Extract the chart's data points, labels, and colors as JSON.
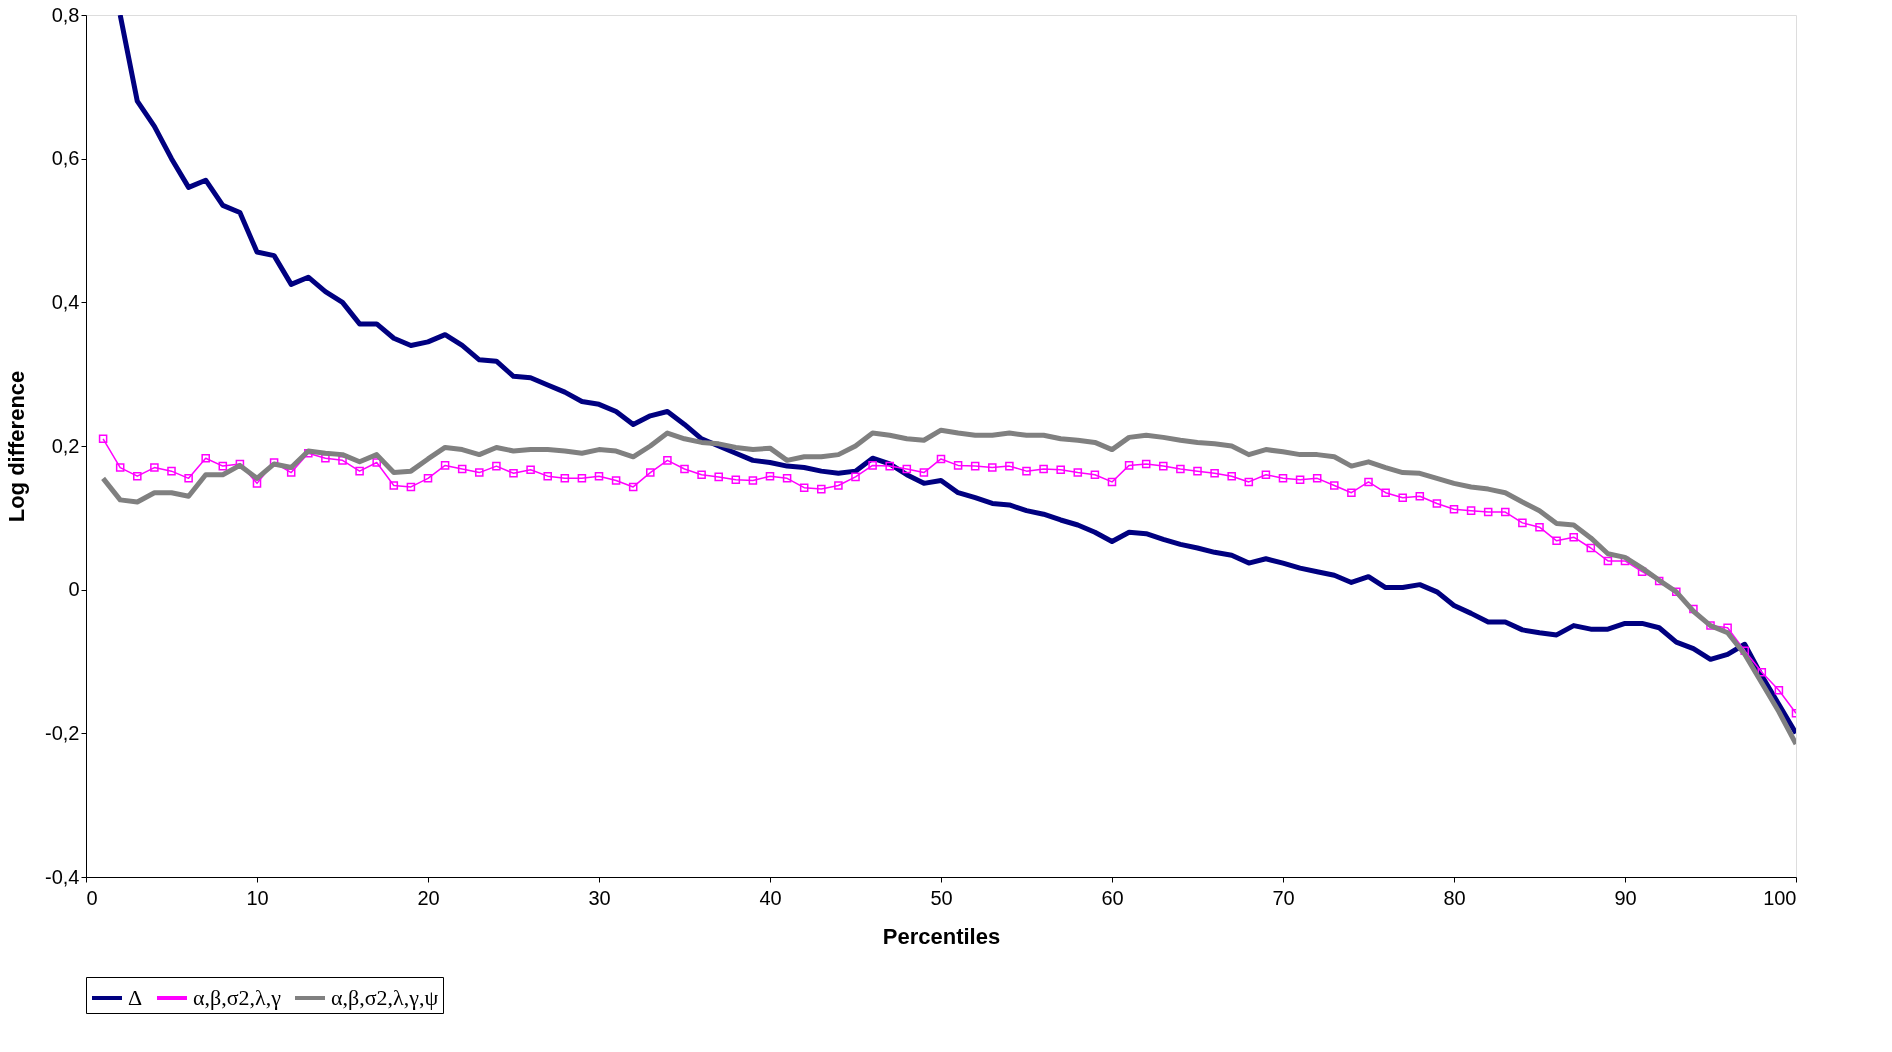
{
  "chart_data": {
    "type": "line",
    "xlabel": "Percentiles",
    "ylabel": "Log difference",
    "xlim": [
      0,
      100
    ],
    "xticks": [
      0,
      10,
      20,
      30,
      40,
      50,
      60,
      70,
      80,
      90,
      100
    ],
    "ylim": [
      -0.4,
      0.8
    ],
    "yticks": [
      {
        "value": -0.4,
        "label": "-0,4"
      },
      {
        "value": -0.2,
        "label": "-0,2"
      },
      {
        "value": 0,
        "label": "0"
      },
      {
        "value": 0.2,
        "label": "0,2"
      },
      {
        "value": 0.4,
        "label": "0,4"
      },
      {
        "value": 0.6,
        "label": "0,6"
      },
      {
        "value": 0.8,
        "label": "0,8"
      }
    ],
    "grid": false,
    "legend": "bottom",
    "series": [
      {
        "name": "Δ",
        "color": "#000080",
        "marker": "none",
        "x": [
          2,
          3,
          4,
          5,
          6,
          7,
          8,
          9,
          10,
          11,
          12,
          13,
          14,
          15,
          16,
          17,
          18,
          19,
          20,
          21,
          22,
          23,
          24,
          25,
          26,
          27,
          28,
          29,
          30,
          31,
          32,
          33,
          34,
          35,
          36,
          37,
          38,
          39,
          40,
          41,
          42,
          43,
          44,
          45,
          46,
          47,
          48,
          49,
          50,
          51,
          52,
          53,
          54,
          55,
          56,
          57,
          58,
          59,
          60,
          61,
          62,
          63,
          64,
          65,
          66,
          67,
          68,
          69,
          70,
          71,
          72,
          73,
          74,
          75,
          76,
          77,
          78,
          79,
          80,
          81,
          82,
          83,
          84,
          85,
          86,
          87,
          88,
          89,
          90,
          91,
          92,
          93,
          94,
          95,
          96,
          97,
          98,
          99,
          100
        ],
        "values": [
          0.8,
          0.68,
          0.645,
          0.6,
          0.56,
          0.57,
          0.535,
          0.525,
          0.47,
          0.465,
          0.425,
          0.435,
          0.415,
          0.4,
          0.37,
          0.37,
          0.35,
          0.34,
          0.345,
          0.355,
          0.34,
          0.32,
          0.318,
          0.297,
          0.295,
          0.285,
          0.275,
          0.262,
          0.258,
          0.248,
          0.23,
          0.242,
          0.248,
          0.23,
          0.21,
          0.2,
          0.19,
          0.18,
          0.177,
          0.172,
          0.17,
          0.165,
          0.162,
          0.165,
          0.183,
          0.175,
          0.16,
          0.148,
          0.152,
          0.135,
          0.128,
          0.12,
          0.118,
          0.11,
          0.105,
          0.097,
          0.09,
          0.08,
          0.067,
          0.08,
          0.078,
          0.07,
          0.063,
          0.058,
          0.052,
          0.048,
          0.037,
          0.043,
          0.037,
          0.03,
          0.025,
          0.02,
          0.01,
          0.018,
          0.003,
          0.003,
          0.007,
          -0.003,
          -0.022,
          -0.033,
          -0.045,
          -0.045,
          -0.056,
          -0.06,
          -0.063,
          -0.05,
          -0.055,
          -0.055,
          -0.047,
          -0.047,
          -0.053,
          -0.073,
          -0.082,
          -0.097,
          -0.09,
          -0.076,
          -0.12,
          -0.16,
          -0.2
        ]
      },
      {
        "name": "α,β,σ2,λ,γ",
        "color": "#ff00ff",
        "marker": "square",
        "x": [
          1,
          2,
          3,
          4,
          5,
          6,
          7,
          8,
          9,
          10,
          11,
          12,
          13,
          14,
          15,
          16,
          17,
          18,
          19,
          20,
          21,
          22,
          23,
          24,
          25,
          26,
          27,
          28,
          29,
          30,
          31,
          32,
          33,
          34,
          35,
          36,
          37,
          38,
          39,
          40,
          41,
          42,
          43,
          44,
          45,
          46,
          47,
          48,
          49,
          50,
          51,
          52,
          53,
          54,
          55,
          56,
          57,
          58,
          59,
          60,
          61,
          62,
          63,
          64,
          65,
          66,
          67,
          68,
          69,
          70,
          71,
          72,
          73,
          74,
          75,
          76,
          77,
          78,
          79,
          80,
          81,
          82,
          83,
          84,
          85,
          86,
          87,
          88,
          89,
          90,
          91,
          92,
          93,
          94,
          95,
          96,
          97,
          98,
          99,
          100
        ],
        "values": [
          0.21,
          0.17,
          0.158,
          0.17,
          0.165,
          0.155,
          0.183,
          0.172,
          0.175,
          0.148,
          0.177,
          0.163,
          0.19,
          0.183,
          0.18,
          0.165,
          0.177,
          0.145,
          0.143,
          0.155,
          0.173,
          0.168,
          0.163,
          0.172,
          0.162,
          0.167,
          0.158,
          0.155,
          0.155,
          0.158,
          0.152,
          0.143,
          0.163,
          0.18,
          0.168,
          0.16,
          0.157,
          0.153,
          0.152,
          0.158,
          0.155,
          0.142,
          0.14,
          0.145,
          0.157,
          0.173,
          0.172,
          0.168,
          0.163,
          0.182,
          0.173,
          0.172,
          0.17,
          0.172,
          0.165,
          0.168,
          0.167,
          0.163,
          0.16,
          0.15,
          0.173,
          0.175,
          0.172,
          0.168,
          0.165,
          0.162,
          0.158,
          0.15,
          0.16,
          0.155,
          0.153,
          0.155,
          0.145,
          0.135,
          0.15,
          0.135,
          0.128,
          0.13,
          0.12,
          0.112,
          0.11,
          0.108,
          0.108,
          0.093,
          0.087,
          0.068,
          0.073,
          0.058,
          0.04,
          0.04,
          0.025,
          0.012,
          -0.003,
          -0.027,
          -0.05,
          -0.053,
          -0.085,
          -0.115,
          -0.14,
          -0.172
        ]
      },
      {
        "name": "α,β,σ2,λ,γ,ψ",
        "color": "#808080",
        "marker": "none",
        "x": [
          1,
          2,
          3,
          4,
          5,
          6,
          7,
          8,
          9,
          10,
          11,
          12,
          13,
          14,
          15,
          16,
          17,
          18,
          19,
          20,
          21,
          22,
          23,
          24,
          25,
          26,
          27,
          28,
          29,
          30,
          31,
          32,
          33,
          34,
          35,
          36,
          37,
          38,
          39,
          40,
          41,
          42,
          43,
          44,
          45,
          46,
          47,
          48,
          49,
          50,
          51,
          52,
          53,
          54,
          55,
          56,
          57,
          58,
          59,
          60,
          61,
          62,
          63,
          64,
          65,
          66,
          67,
          68,
          69,
          70,
          71,
          72,
          73,
          74,
          75,
          76,
          77,
          78,
          79,
          80,
          81,
          82,
          83,
          84,
          85,
          86,
          87,
          88,
          89,
          90,
          91,
          92,
          93,
          94,
          95,
          96,
          97,
          98,
          99,
          100
        ],
        "values": [
          0.155,
          0.125,
          0.122,
          0.135,
          0.135,
          0.13,
          0.16,
          0.16,
          0.173,
          0.155,
          0.175,
          0.17,
          0.193,
          0.19,
          0.188,
          0.178,
          0.188,
          0.163,
          0.165,
          0.182,
          0.198,
          0.195,
          0.188,
          0.198,
          0.193,
          0.195,
          0.195,
          0.193,
          0.19,
          0.195,
          0.193,
          0.185,
          0.2,
          0.218,
          0.21,
          0.205,
          0.203,
          0.198,
          0.195,
          0.197,
          0.18,
          0.185,
          0.185,
          0.188,
          0.2,
          0.218,
          0.215,
          0.21,
          0.208,
          0.222,
          0.218,
          0.215,
          0.215,
          0.218,
          0.215,
          0.215,
          0.21,
          0.208,
          0.205,
          0.195,
          0.212,
          0.215,
          0.212,
          0.208,
          0.205,
          0.203,
          0.2,
          0.188,
          0.195,
          0.192,
          0.188,
          0.188,
          0.185,
          0.172,
          0.178,
          0.17,
          0.163,
          0.162,
          0.155,
          0.148,
          0.143,
          0.14,
          0.135,
          0.122,
          0.11,
          0.092,
          0.09,
          0.072,
          0.05,
          0.045,
          0.03,
          0.013,
          -0.003,
          -0.03,
          -0.05,
          -0.06,
          -0.09,
          -0.13,
          -0.17,
          -0.215
        ]
      }
    ]
  }
}
